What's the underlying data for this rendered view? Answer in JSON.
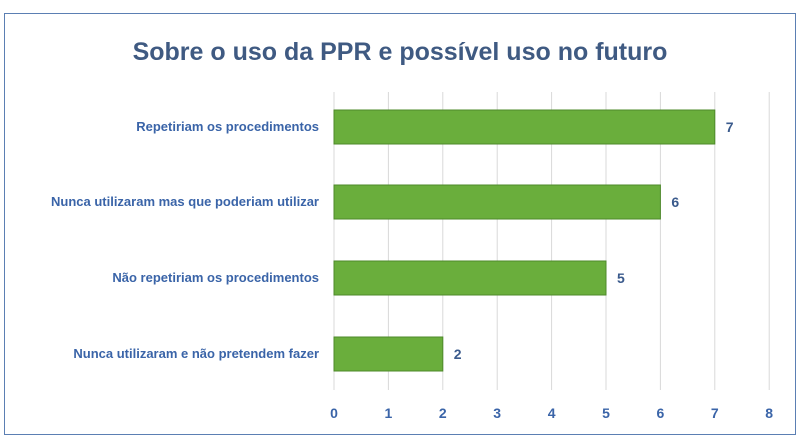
{
  "chart_data": {
    "type": "bar",
    "orientation": "horizontal",
    "title": "Sobre o uso da PPR e possível uso no futuro",
    "categories": [
      "Repetiriam os procedimentos",
      "Nunca utilizaram mas que poderiam utilizar",
      "Não repetiriam os procedimentos",
      "Nunca utilizaram e não pretendem fazer"
    ],
    "values": [
      7,
      6,
      5,
      2
    ],
    "xlim": [
      0,
      8
    ],
    "xticks": [
      0,
      1,
      2,
      3,
      4,
      5,
      6,
      7,
      8
    ],
    "grid": "vertical",
    "data_labels": true,
    "colors": {
      "bar": "#6aae3c",
      "bar_border": "#4e8a2a",
      "text": "#3a64a8",
      "title": "#3f5a82",
      "grid": "#d9d9d9"
    }
  }
}
